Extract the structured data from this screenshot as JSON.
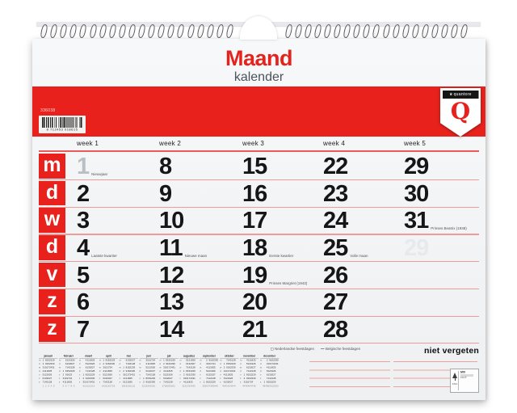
{
  "title": {
    "main": "Maand",
    "sub": "kalender"
  },
  "red_band": {
    "product_code": "336038",
    "barcode_digits": "8 712453 018615"
  },
  "logo": {
    "crown": "♛",
    "name": "quantore",
    "letter": "Q"
  },
  "calendar": {
    "week_headers": [
      "week 1",
      "week 2",
      "week 3",
      "week 4",
      "week 5"
    ],
    "day_rows": [
      {
        "letter": "m",
        "cells": [
          {
            "num": "1",
            "muted": true,
            "note": "Nieuwjaar"
          },
          {
            "num": "8"
          },
          {
            "num": "15"
          },
          {
            "num": "22"
          },
          {
            "num": "29"
          }
        ]
      },
      {
        "letter": "d",
        "cells": [
          {
            "num": "2"
          },
          {
            "num": "9"
          },
          {
            "num": "16"
          },
          {
            "num": "23"
          },
          {
            "num": "30"
          }
        ]
      },
      {
        "letter": "w",
        "cells": [
          {
            "num": "3"
          },
          {
            "num": "10"
          },
          {
            "num": "17"
          },
          {
            "num": "24"
          },
          {
            "num": "31",
            "note": "Prinses Beatrix (1938)"
          }
        ]
      },
      {
        "letter": "d",
        "cells": [
          {
            "num": "4",
            "note": "Laatste kwartier"
          },
          {
            "num": "11",
            "note": "Nieuwe maan"
          },
          {
            "num": "18",
            "note": "Eerste kwartier"
          },
          {
            "num": "25",
            "note": "Volle maan"
          },
          {
            "num": "29",
            "ghost": true
          }
        ]
      },
      {
        "letter": "v",
        "cells": [
          {
            "num": "5"
          },
          {
            "num": "12"
          },
          {
            "num": "19",
            "note": "Prinses Margriet (1943)"
          },
          {
            "num": "26"
          }
        ]
      },
      {
        "letter": "z",
        "cells": [
          {
            "num": "6"
          },
          {
            "num": "13"
          },
          {
            "num": "20"
          },
          {
            "num": "27"
          }
        ]
      },
      {
        "letter": "z",
        "cells": [
          {
            "num": "7"
          },
          {
            "num": "14"
          },
          {
            "num": "21"
          },
          {
            "num": "28"
          }
        ]
      }
    ]
  },
  "footer": {
    "legend_nl_label": "Nederlandse feestdagen",
    "legend_be_label": "Belgische feestdagen",
    "note_label": "niet vergeten",
    "weekday_letters": [
      "m",
      "d",
      "w",
      "d",
      "v",
      "z",
      "z"
    ],
    "mini_months": [
      {
        "name": "januari",
        "start": 0,
        "days": 31,
        "week": 1
      },
      {
        "name": "februari",
        "start": 3,
        "days": 29,
        "week": 5
      },
      {
        "name": "maart",
        "start": 4,
        "days": 31,
        "week": 9
      },
      {
        "name": "april",
        "start": 0,
        "days": 30,
        "week": 14
      },
      {
        "name": "mei",
        "start": 2,
        "days": 31,
        "week": 18
      },
      {
        "name": "juni",
        "start": 5,
        "days": 30,
        "week": 22
      },
      {
        "name": "juli",
        "start": 0,
        "days": 31,
        "week": 27
      },
      {
        "name": "augustus",
        "start": 3,
        "days": 31,
        "week": 31
      },
      {
        "name": "september",
        "start": 6,
        "days": 30,
        "week": 35
      },
      {
        "name": "oktober",
        "start": 1,
        "days": 31,
        "week": 40
      },
      {
        "name": "november",
        "start": 4,
        "days": 30,
        "week": 44
      },
      {
        "name": "december",
        "start": 6,
        "days": 31,
        "week": 48
      }
    ],
    "fsc_label": "MIX",
    "fsc_brand": "FSC",
    "fsc_code": "FSC®"
  },
  "colors": {
    "accent_red": "#e8211c",
    "line_pink": "#f09b99",
    "muted_number": "#b9c0c4",
    "ghost_number": "#e6eaec",
    "number_black": "#161616"
  }
}
